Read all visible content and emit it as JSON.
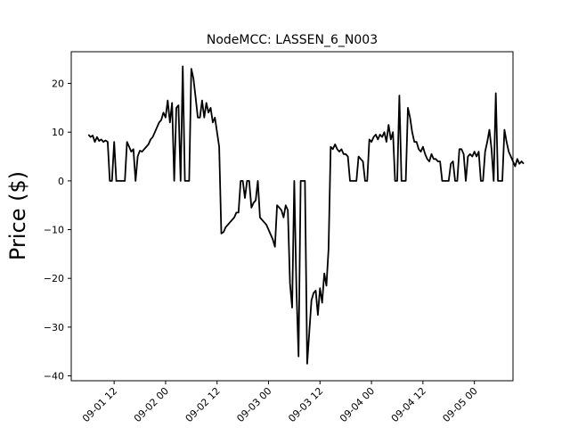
{
  "chart_data": {
    "type": "line",
    "title": "NodeMCC: LASSEN_6_N003",
    "xlabel": "",
    "ylabel": "Price ($)",
    "xlim": [
      "2023-09-01T02:00",
      "2023-09-05T09:00"
    ],
    "ylim": [
      -41,
      26.5
    ],
    "x_ticks": [
      {
        "t": "2023-09-01T12:00",
        "label": "09-01 12"
      },
      {
        "t": "2023-09-02T00:00",
        "label": "09-02 00"
      },
      {
        "t": "2023-09-02T12:00",
        "label": "09-02 12"
      },
      {
        "t": "2023-09-03T00:00",
        "label": "09-03 00"
      },
      {
        "t": "2023-09-03T12:00",
        "label": "09-03 12"
      },
      {
        "t": "2023-09-04T00:00",
        "label": "09-04 00"
      },
      {
        "t": "2023-09-04T12:00",
        "label": "09-04 12"
      },
      {
        "t": "2023-09-05T00:00",
        "label": "09-05 00"
      }
    ],
    "y_ticks": [
      -40,
      -30,
      -20,
      -10,
      0,
      10,
      20
    ],
    "grid": false,
    "color": "#000000",
    "series": [
      {
        "name": "",
        "points": [
          [
            "2023-09-01T06:00",
            9.5
          ],
          [
            "2023-09-01T06:30",
            9.0
          ],
          [
            "2023-09-01T07:00",
            9.3
          ],
          [
            "2023-09-01T07:30",
            8.0
          ],
          [
            "2023-09-01T08:00",
            9.0
          ],
          [
            "2023-09-01T08:30",
            8.2
          ],
          [
            "2023-09-01T09:00",
            8.5
          ],
          [
            "2023-09-01T09:30",
            8.0
          ],
          [
            "2023-09-01T10:00",
            8.3
          ],
          [
            "2023-09-01T10:30",
            8.0
          ],
          [
            "2023-09-01T11:00",
            0
          ],
          [
            "2023-09-01T11:30",
            0
          ],
          [
            "2023-09-01T12:00",
            8.0
          ],
          [
            "2023-09-01T12:30",
            0
          ],
          [
            "2023-09-01T13:00",
            0
          ],
          [
            "2023-09-01T13:30",
            0
          ],
          [
            "2023-09-01T14:00",
            0
          ],
          [
            "2023-09-01T14:30",
            0
          ],
          [
            "2023-09-01T15:00",
            8.0
          ],
          [
            "2023-09-01T15:30",
            7.0
          ],
          [
            "2023-09-01T16:00",
            6.0
          ],
          [
            "2023-09-01T16:30",
            6.5
          ],
          [
            "2023-09-01T17:00",
            0
          ],
          [
            "2023-09-01T17:30",
            5.0
          ],
          [
            "2023-09-01T18:00",
            6.2
          ],
          [
            "2023-09-01T18:30",
            6.0
          ],
          [
            "2023-09-01T19:00",
            6.5
          ],
          [
            "2023-09-01T19:30",
            7.0
          ],
          [
            "2023-09-01T20:00",
            7.5
          ],
          [
            "2023-09-01T20:30",
            8.5
          ],
          [
            "2023-09-01T21:00",
            9.0
          ],
          [
            "2023-09-01T21:30",
            10.0
          ],
          [
            "2023-09-01T22:00",
            11.0
          ],
          [
            "2023-09-01T22:30",
            12.0
          ],
          [
            "2023-09-01T23:00",
            12.5
          ],
          [
            "2023-09-01T23:30",
            14.0
          ],
          [
            "2023-09-02T00:00",
            13.0
          ],
          [
            "2023-09-02T00:30",
            16.5
          ],
          [
            "2023-09-02T01:00",
            12.0
          ],
          [
            "2023-09-02T01:30",
            16.0
          ],
          [
            "2023-09-02T02:00",
            0
          ],
          [
            "2023-09-02T02:30",
            15.0
          ],
          [
            "2023-09-02T03:00",
            15.5
          ],
          [
            "2023-09-02T03:30",
            0
          ],
          [
            "2023-09-02T04:00",
            23.5
          ],
          [
            "2023-09-02T04:30",
            0
          ],
          [
            "2023-09-02T05:00",
            0
          ],
          [
            "2023-09-02T05:30",
            0
          ],
          [
            "2023-09-02T06:00",
            23.0
          ],
          [
            "2023-09-02T06:30",
            21.0
          ],
          [
            "2023-09-02T07:00",
            17.0
          ],
          [
            "2023-09-02T07:30",
            13.0
          ],
          [
            "2023-09-02T08:00",
            13.0
          ],
          [
            "2023-09-02T08:30",
            16.5
          ],
          [
            "2023-09-02T09:00",
            13.0
          ],
          [
            "2023-09-02T09:30",
            16.0
          ],
          [
            "2023-09-02T10:00",
            14.0
          ],
          [
            "2023-09-02T10:30",
            15.0
          ],
          [
            "2023-09-02T11:00",
            12.0
          ],
          [
            "2023-09-02T11:30",
            13.0
          ],
          [
            "2023-09-02T12:00",
            10.0
          ],
          [
            "2023-09-02T12:30",
            7.0
          ],
          [
            "2023-09-02T13:00",
            -10.8
          ],
          [
            "2023-09-02T13:30",
            -10.5
          ],
          [
            "2023-09-02T14:00",
            -9.5
          ],
          [
            "2023-09-02T14:30",
            -9.0
          ],
          [
            "2023-09-02T15:00",
            -8.5
          ],
          [
            "2023-09-02T15:30",
            -8.0
          ],
          [
            "2023-09-02T16:00",
            -7.5
          ],
          [
            "2023-09-02T16:30",
            -6.5
          ],
          [
            "2023-09-02T17:00",
            -6.5
          ],
          [
            "2023-09-02T17:30",
            0
          ],
          [
            "2023-09-02T18:00",
            0
          ],
          [
            "2023-09-02T18:30",
            -3.5
          ],
          [
            "2023-09-02T19:00",
            0
          ],
          [
            "2023-09-02T19:30",
            0
          ],
          [
            "2023-09-02T20:00",
            -5.5
          ],
          [
            "2023-09-02T20:30",
            -4.5
          ],
          [
            "2023-09-02T21:00",
            -4.0
          ],
          [
            "2023-09-02T21:30",
            0
          ],
          [
            "2023-09-02T22:00",
            -7.5
          ],
          [
            "2023-09-02T22:30",
            -8.0
          ],
          [
            "2023-09-02T23:00",
            -8.5
          ],
          [
            "2023-09-02T23:30",
            -9.0
          ],
          [
            "2023-09-03T00:00",
            -10.0
          ],
          [
            "2023-09-03T00:30",
            -11.0
          ],
          [
            "2023-09-03T01:00",
            -12.0
          ],
          [
            "2023-09-03T01:30",
            -13.5
          ],
          [
            "2023-09-03T02:00",
            -5.0
          ],
          [
            "2023-09-03T02:30",
            -5.5
          ],
          [
            "2023-09-03T03:00",
            -6.0
          ],
          [
            "2023-09-03T03:30",
            -7.5
          ],
          [
            "2023-09-03T04:00",
            -5.0
          ],
          [
            "2023-09-03T04:30",
            -6.0
          ],
          [
            "2023-09-03T05:00",
            -21.0
          ],
          [
            "2023-09-03T05:30",
            -26.0
          ],
          [
            "2023-09-03T06:00",
            0
          ],
          [
            "2023-09-03T06:30",
            -22.0
          ],
          [
            "2023-09-03T07:00",
            -36.0
          ],
          [
            "2023-09-03T07:30",
            0
          ],
          [
            "2023-09-03T08:00",
            0
          ],
          [
            "2023-09-03T08:30",
            0
          ],
          [
            "2023-09-03T09:00",
            -37.5
          ],
          [
            "2023-09-03T09:30",
            -31.0
          ],
          [
            "2023-09-03T10:00",
            -24.5
          ],
          [
            "2023-09-03T10:30",
            -23.0
          ],
          [
            "2023-09-03T11:00",
            -22.5
          ],
          [
            "2023-09-03T11:30",
            -27.5
          ],
          [
            "2023-09-03T12:00",
            -22.0
          ],
          [
            "2023-09-03T12:30",
            -25.0
          ],
          [
            "2023-09-03T13:00",
            -19.0
          ],
          [
            "2023-09-03T13:30",
            -21.5
          ],
          [
            "2023-09-03T14:00",
            -14.0
          ],
          [
            "2023-09-03T14:30",
            7.0
          ],
          [
            "2023-09-03T15:00",
            6.5
          ],
          [
            "2023-09-03T15:30",
            7.5
          ],
          [
            "2023-09-03T16:00",
            6.5
          ],
          [
            "2023-09-03T16:30",
            6.0
          ],
          [
            "2023-09-03T17:00",
            6.5
          ],
          [
            "2023-09-03T17:30",
            5.5
          ],
          [
            "2023-09-03T18:00",
            5.5
          ],
          [
            "2023-09-03T18:30",
            5.0
          ],
          [
            "2023-09-03T19:00",
            0
          ],
          [
            "2023-09-03T19:30",
            0
          ],
          [
            "2023-09-03T20:00",
            0
          ],
          [
            "2023-09-03T20:30",
            0
          ],
          [
            "2023-09-03T21:00",
            5.0
          ],
          [
            "2023-09-03T21:30",
            4.5
          ],
          [
            "2023-09-03T22:00",
            4.0
          ],
          [
            "2023-09-03T22:30",
            0
          ],
          [
            "2023-09-03T23:00",
            0
          ],
          [
            "2023-09-03T23:30",
            8.5
          ],
          [
            "2023-09-04T00:00",
            8.0
          ],
          [
            "2023-09-04T00:30",
            9.0
          ],
          [
            "2023-09-04T01:00",
            9.5
          ],
          [
            "2023-09-04T01:30",
            8.5
          ],
          [
            "2023-09-04T02:00",
            9.5
          ],
          [
            "2023-09-04T02:30",
            9.0
          ],
          [
            "2023-09-04T03:00",
            10.0
          ],
          [
            "2023-09-04T03:30",
            8.0
          ],
          [
            "2023-09-04T04:00",
            11.5
          ],
          [
            "2023-09-04T04:30",
            8.5
          ],
          [
            "2023-09-04T05:00",
            10.0
          ],
          [
            "2023-09-04T05:30",
            0
          ],
          [
            "2023-09-04T06:00",
            0
          ],
          [
            "2023-09-04T06:30",
            17.5
          ],
          [
            "2023-09-04T07:00",
            0
          ],
          [
            "2023-09-04T07:30",
            0
          ],
          [
            "2023-09-04T08:00",
            0
          ],
          [
            "2023-09-04T08:30",
            15.0
          ],
          [
            "2023-09-04T09:00",
            13.0
          ],
          [
            "2023-09-04T09:30",
            10.0
          ],
          [
            "2023-09-04T10:00",
            8.0
          ],
          [
            "2023-09-04T10:30",
            8.0
          ],
          [
            "2023-09-04T11:00",
            6.5
          ],
          [
            "2023-09-04T11:30",
            6.0
          ],
          [
            "2023-09-04T12:00",
            7.0
          ],
          [
            "2023-09-04T12:30",
            5.5
          ],
          [
            "2023-09-04T13:00",
            4.5
          ],
          [
            "2023-09-04T13:30",
            4.0
          ],
          [
            "2023-09-04T14:00",
            5.5
          ],
          [
            "2023-09-04T14:30",
            4.5
          ],
          [
            "2023-09-04T15:00",
            4.5
          ],
          [
            "2023-09-04T15:30",
            4.0
          ],
          [
            "2023-09-04T16:00",
            4.0
          ],
          [
            "2023-09-04T16:30",
            0
          ],
          [
            "2023-09-04T17:00",
            0
          ],
          [
            "2023-09-04T17:30",
            0
          ],
          [
            "2023-09-04T18:00",
            0
          ],
          [
            "2023-09-04T18:30",
            3.5
          ],
          [
            "2023-09-04T19:00",
            4.0
          ],
          [
            "2023-09-04T19:30",
            0
          ],
          [
            "2023-09-04T20:00",
            0
          ],
          [
            "2023-09-04T20:30",
            6.5
          ],
          [
            "2023-09-04T21:00",
            6.5
          ],
          [
            "2023-09-04T21:30",
            5.5
          ],
          [
            "2023-09-04T22:00",
            0
          ],
          [
            "2023-09-04T22:30",
            5.0
          ],
          [
            "2023-09-04T23:00",
            5.5
          ],
          [
            "2023-09-04T23:30",
            5.0
          ],
          [
            "2023-09-05T00:00",
            6.0
          ],
          [
            "2023-09-05T00:30",
            5.0
          ],
          [
            "2023-09-05T01:00",
            6.0
          ],
          [
            "2023-09-05T01:30",
            0
          ],
          [
            "2023-09-05T02:00",
            0
          ],
          [
            "2023-09-05T02:30",
            6.0
          ],
          [
            "2023-09-05T03:00",
            8.0
          ],
          [
            "2023-09-05T03:30",
            10.5
          ],
          [
            "2023-09-05T04:00",
            6.5
          ],
          [
            "2023-09-05T04:30",
            0
          ],
          [
            "2023-09-05T05:00",
            18.0
          ],
          [
            "2023-09-05T05:30",
            0
          ],
          [
            "2023-09-05T06:00",
            0
          ],
          [
            "2023-09-05T06:30",
            0
          ],
          [
            "2023-09-05T07:00",
            10.5
          ],
          [
            "2023-09-05T07:30",
            8.0
          ],
          [
            "2023-09-05T08:00",
            6.0
          ],
          [
            "2023-09-05T08:30",
            5.0
          ],
          [
            "2023-09-05T09:00",
            4.0
          ],
          [
            "2023-09-05T09:30",
            3.0
          ],
          [
            "2023-09-05T10:00",
            4.5
          ],
          [
            "2023-09-05T10:30",
            3.5
          ],
          [
            "2023-09-05T11:00",
            4.0
          ],
          [
            "2023-09-05T11:30",
            3.5
          ]
        ]
      }
    ]
  }
}
